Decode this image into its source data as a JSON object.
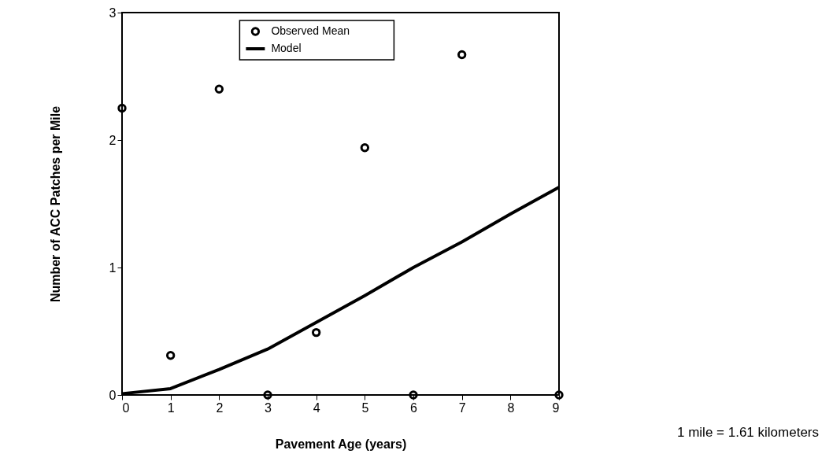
{
  "chart_data": {
    "type": "scatter",
    "xlabel": "Pavement Age  (years)",
    "ylabel": "Number of ACC Patches per Mile",
    "xlim": [
      0,
      9
    ],
    "xticks": [
      0,
      1,
      2,
      3,
      4,
      5,
      6,
      7,
      8,
      9
    ],
    "ylim": [
      0,
      3
    ],
    "yticks": [
      0,
      1,
      2,
      3
    ],
    "grid": false,
    "legend": "top",
    "marker": "circle",
    "annotations": [
      "1 mile = 1.61 kilometers"
    ],
    "series": [
      {
        "name": "Observed Mean",
        "color": "#000000",
        "x": [
          0,
          1,
          2,
          3,
          4,
          5,
          6,
          7,
          9
        ],
        "values": [
          2.25,
          0.31,
          2.4,
          0.0,
          0.49,
          1.94,
          0.0,
          2.67,
          0.0
        ]
      },
      {
        "name": "Model",
        "type": "line",
        "marker": "none",
        "color": "#000000",
        "x": [
          0,
          1,
          2,
          3,
          4,
          5,
          6,
          7,
          8,
          9
        ],
        "values": [
          0.01,
          0.05,
          0.2,
          0.36,
          0.57,
          0.78,
          1.0,
          1.2,
          1.42,
          1.63
        ]
      }
    ]
  }
}
